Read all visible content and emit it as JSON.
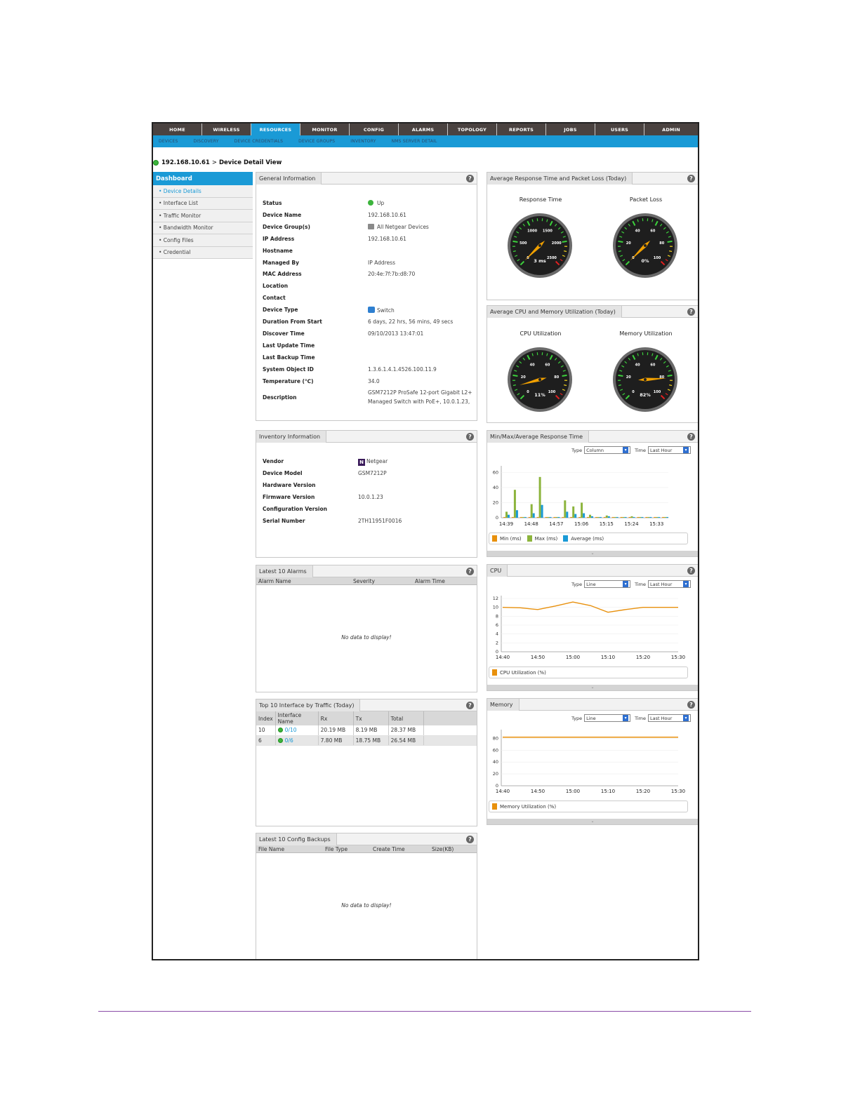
{
  "nav": {
    "tabs": [
      "HOME",
      "WIRELESS",
      "RESOURCES",
      "MONITOR",
      "CONFIG",
      "ALARMS",
      "TOPOLOGY",
      "REPORTS",
      "JOBS",
      "USERS",
      "ADMIN"
    ],
    "active": "RESOURCES",
    "subtabs": [
      "DEVICES",
      "DISCOVERY",
      "DEVICE CREDENTIALS",
      "DEVICE GROUPS",
      "INVENTORY",
      "NMS SERVER DETAIL"
    ]
  },
  "breadcrumb": {
    "ip": "192.168.10.61",
    "sep": ">",
    "page": "Device Detail View"
  },
  "sidebar": {
    "title": "Dashboard",
    "items": [
      "• Device Details",
      "• Interface List",
      "• Traffic Monitor",
      "• Bandwidth Monitor",
      "• Config Files",
      "• Credential"
    ]
  },
  "general": {
    "title": "General Information",
    "rows": [
      {
        "k": "Status",
        "v": "Up"
      },
      {
        "k": "Device Name",
        "v": "192.168.10.61"
      },
      {
        "k": "Device Group(s)",
        "v": "All Netgear Devices"
      },
      {
        "k": "IP Address",
        "v": "192.168.10.61"
      },
      {
        "k": "Hostname",
        "v": ""
      },
      {
        "k": "Managed By",
        "v": "IP Address"
      },
      {
        "k": "MAC Address",
        "v": "20:4e:7f:7b:d8:70"
      },
      {
        "k": "Location",
        "v": ""
      },
      {
        "k": "Contact",
        "v": ""
      },
      {
        "k": "Device Type",
        "v": "Switch"
      },
      {
        "k": "Duration From Start",
        "v": "6 days, 22 hrs, 56 mins, 49 secs"
      },
      {
        "k": "Discover Time",
        "v": "09/10/2013 13:47:01"
      },
      {
        "k": "Last Update Time",
        "v": ""
      },
      {
        "k": "Last Backup Time",
        "v": ""
      },
      {
        "k": "System Object ID",
        "v": "1.3.6.1.4.1.4526.100.11.9"
      },
      {
        "k": "Temperature (℃)",
        "v": "34.0"
      }
    ],
    "description_label": "Description",
    "description_line1": "GSM7212P ProSafe 12-port Gigabit L2+",
    "description_line2": "Managed Switch with PoE+, 10.0.1.23,"
  },
  "inventory": {
    "title": "Inventory Information",
    "rows": [
      {
        "k": "Vendor",
        "v": "Netgear"
      },
      {
        "k": "Device Model",
        "v": "GSM7212P"
      },
      {
        "k": "Hardware Version",
        "v": ""
      },
      {
        "k": "Firmware Version",
        "v": "10.0.1.23"
      },
      {
        "k": "Configuration Version",
        "v": ""
      },
      {
        "k": "Serial Number",
        "v": "2TH11951F0016"
      }
    ],
    "vendor_logo": "N"
  },
  "alarms": {
    "title": "Latest 10 Alarms",
    "columns": [
      "Alarm Name",
      "Severity",
      "Alarm Time"
    ],
    "empty": "No data to display!"
  },
  "traffic": {
    "title": "Top 10 Interface by Traffic (Today)",
    "columns": [
      "Index",
      "Interface Name",
      "Rx",
      "Tx",
      "Total"
    ],
    "rows": [
      {
        "index": "10",
        "name": "0/10",
        "rx": "20.19 MB",
        "tx": "8.19 MB",
        "total": "28.37 MB"
      },
      {
        "index": "6",
        "name": "0/6",
        "rx": "7.80 MB",
        "tx": "18.75 MB",
        "total": "26.54 MB"
      }
    ]
  },
  "backups": {
    "title": "Latest 10 Config Backups",
    "columns": [
      "File Name",
      "File Type",
      "Create Time",
      "Size(KB)"
    ],
    "empty": "No data to display!"
  },
  "response_panel": {
    "title": "Average Response Time and Packet Loss (Today)",
    "gauges": [
      {
        "label": "Response Time",
        "readout": "3 ms",
        "value": 3,
        "max": 2500,
        "ticks": [
          "0",
          "500",
          "1000",
          "1500",
          "2000",
          "2500"
        ]
      },
      {
        "label": "Packet Loss",
        "readout": "0%",
        "value": 0,
        "max": 100,
        "ticks": [
          "0",
          "20",
          "40",
          "60",
          "80",
          "100"
        ]
      }
    ]
  },
  "cpu_mem_panel": {
    "title": "Average CPU and Memory Utilization (Today)",
    "gauges": [
      {
        "label": "CPU Utilization",
        "readout": "11%",
        "value": 11,
        "max": 100,
        "ticks": [
          "0",
          "20",
          "40",
          "60",
          "80",
          "100"
        ]
      },
      {
        "label": "Memory Utilization",
        "readout": "82%",
        "value": 82,
        "max": 100,
        "ticks": [
          "0",
          "20",
          "40",
          "60",
          "80",
          "100"
        ]
      }
    ]
  },
  "chart_data": [
    {
      "title": "Min/Max/Average Response Time",
      "type": "bar",
      "controls": {
        "type_label": "Type",
        "type_value": "Column",
        "time_label": "Time",
        "time_value": "Last Hour"
      },
      "categories": [
        "14:39",
        "",
        "",
        "14:48",
        "",
        "",
        "14:57",
        "",
        "",
        "15:06",
        "",
        "",
        "15:15",
        "",
        "",
        "15:24",
        "",
        "",
        "15:33",
        ""
      ],
      "series": [
        {
          "name": "Min (ms)",
          "color": "#e8900c",
          "values": [
            1,
            1,
            1,
            1,
            1,
            1,
            1,
            1,
            1,
            1,
            1,
            1,
            1,
            1,
            1,
            1,
            1,
            1,
            1,
            1
          ]
        },
        {
          "name": "Max (ms)",
          "color": "#8cb43c",
          "values": [
            8,
            37,
            1,
            18,
            54,
            1,
            1,
            23,
            15,
            20,
            4,
            1,
            3,
            1,
            1,
            2,
            1,
            1,
            1,
            1
          ]
        },
        {
          "name": "Average (ms)",
          "color": "#1a9ad6",
          "values": [
            4,
            10,
            1,
            6,
            17,
            1,
            1,
            8,
            5,
            6,
            2,
            1,
            2,
            1,
            1,
            1,
            1,
            1,
            1,
            1
          ]
        }
      ],
      "ylim": [
        0,
        65
      ],
      "yticks": [
        0,
        20,
        40,
        60
      ]
    },
    {
      "title": "CPU",
      "type": "line",
      "controls": {
        "type_label": "Type",
        "type_value": "Line",
        "time_label": "Time",
        "time_value": "Last Hour"
      },
      "xticks": [
        "14:40",
        "14:50",
        "15:00",
        "15:10",
        "15:20",
        "15:30"
      ],
      "x": [
        "14:40",
        "14:45",
        "14:50",
        "14:55",
        "15:00",
        "15:05",
        "15:10",
        "15:15",
        "15:20",
        "15:25",
        "15:30"
      ],
      "series": [
        {
          "name": "CPU Utilization (%)",
          "color": "#e8900c",
          "values": [
            10,
            9.9,
            9.5,
            10.3,
            11.2,
            10.4,
            8.9,
            9.5,
            10,
            10,
            10
          ]
        }
      ],
      "ylim": [
        0,
        12
      ],
      "yticks": [
        0,
        2,
        4,
        6,
        8,
        10,
        12
      ]
    },
    {
      "title": "Memory",
      "type": "line",
      "controls": {
        "type_label": "Type",
        "type_value": "Line",
        "time_label": "Time",
        "time_value": "Last Hour"
      },
      "xticks": [
        "14:40",
        "14:50",
        "15:00",
        "15:10",
        "15:20",
        "15:30"
      ],
      "x": [
        "14:40",
        "14:50",
        "15:00",
        "15:10",
        "15:20",
        "15:30"
      ],
      "series": [
        {
          "name": "Memory Utilization (%)",
          "color": "#e8900c",
          "values": [
            82,
            82,
            82,
            82,
            82,
            82
          ]
        }
      ],
      "ylim": [
        0,
        90
      ],
      "yticks": [
        0,
        20,
        40,
        60,
        80
      ]
    }
  ],
  "colors": {
    "accent": "#1a9ad6",
    "nav_bg": "#4a4240",
    "status_up": "#3cb43c",
    "series_orange": "#e8900c"
  }
}
